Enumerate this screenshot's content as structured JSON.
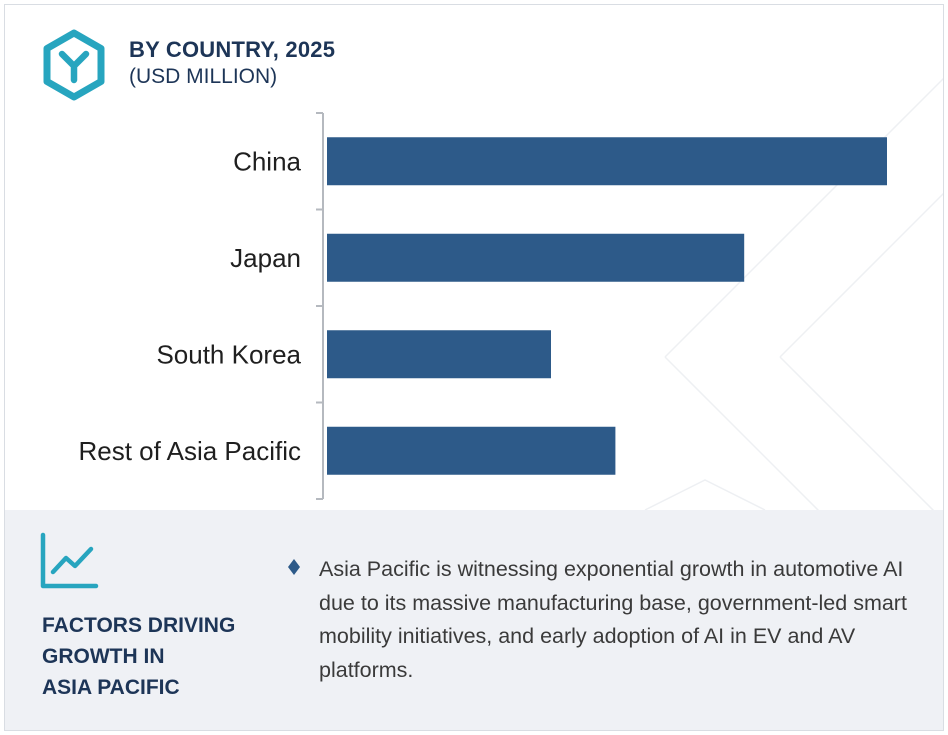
{
  "header": {
    "title": "BY COUNTRY, 2025",
    "subtitle": "(USD MILLION)",
    "logo_icon": "hexagon-y-logo-icon"
  },
  "chart_data": {
    "type": "bar",
    "orientation": "horizontal",
    "title": "BY COUNTRY, 2025",
    "subtitle": "(USD MILLION)",
    "categories": [
      "China",
      "Japan",
      "South Korea",
      "Rest of Asia Pacific"
    ],
    "values": [
      100,
      74.5,
      40,
      51.5
    ],
    "value_scale": "relative (no axis values shown)",
    "xlim": [
      0,
      100
    ],
    "grid": false,
    "legend": "none",
    "bar_color": "#2d5a89"
  },
  "factors": {
    "icon": "line-chart-growth-icon",
    "title_lines": [
      "FACTORS DRIVING",
      "GROWTH IN",
      "ASIA PACIFIC"
    ],
    "bullet_icon": "diamond-bullet-icon",
    "text": "Asia Pacific is witnessing exponential growth in automotive AI due to its massive manufacturing base, government-led smart mobility initiatives, and early adoption of AI in EV and AV platforms."
  },
  "colors": {
    "brand_teal": "#27a5bf",
    "navy_text": "#1d3557",
    "bar": "#2d5a89",
    "panel_bg": "#eff1f5"
  }
}
